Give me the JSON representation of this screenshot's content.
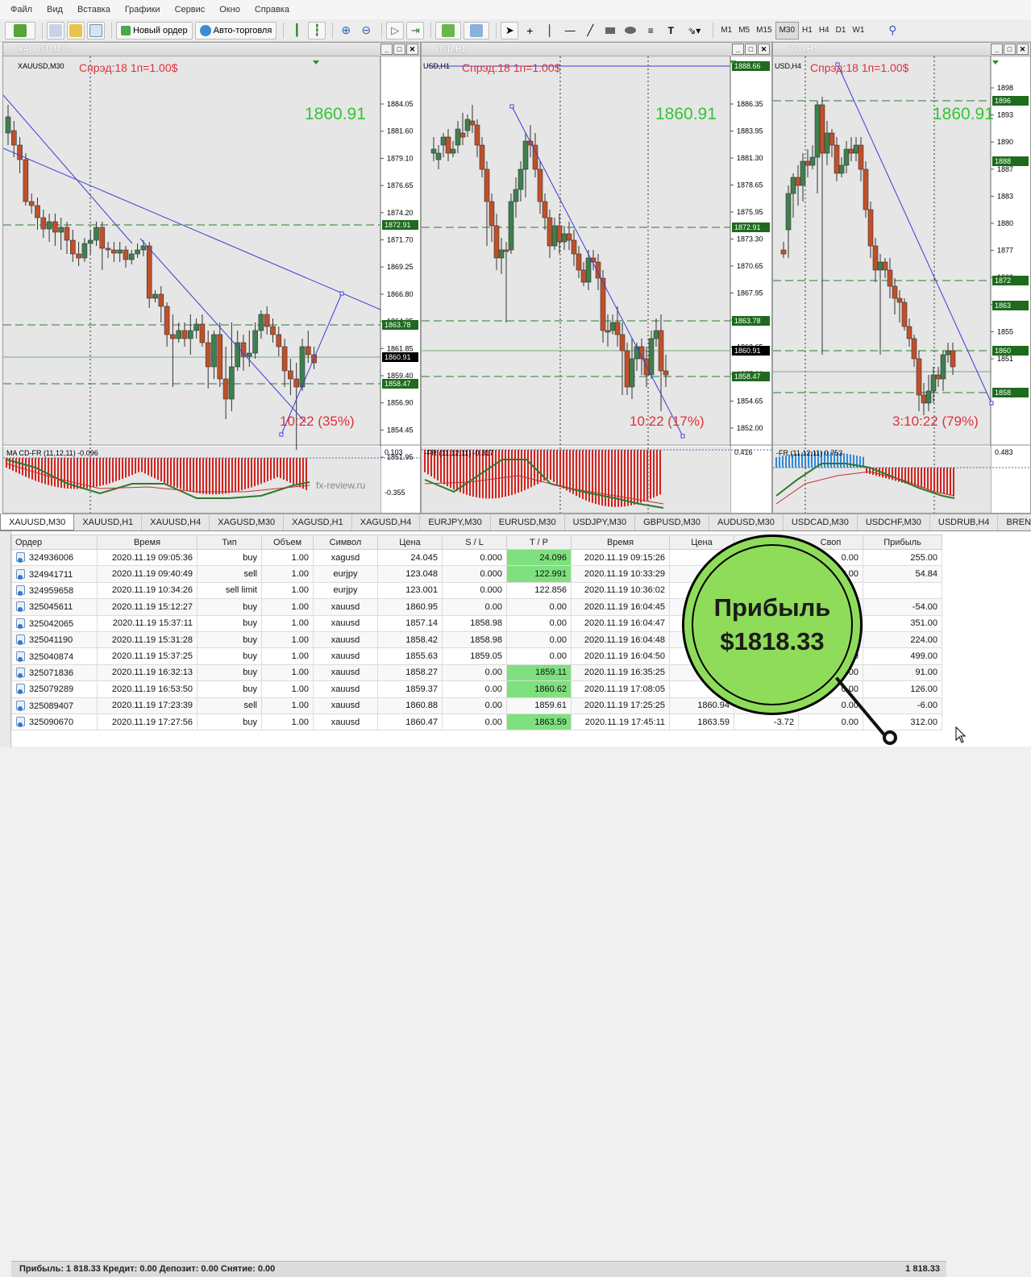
{
  "menu": [
    "Файл",
    "Вид",
    "Вставка",
    "Графики",
    "Сервис",
    "Окно",
    "Справка"
  ],
  "toolbar": {
    "new_order": "Новый ордер",
    "auto_trading": "Авто-торговля",
    "timeframes": [
      "M1",
      "M5",
      "M15",
      "M30",
      "H1",
      "H4",
      "D1",
      "W1"
    ],
    "active_timeframe": "M30"
  },
  "charts": [
    {
      "title": "XAUUSD,M30",
      "subtitle": "XAUUSD,M30",
      "spread": "Спрэд:18  1п=1.00$",
      "price": "1860.91",
      "countdown": "10:22 (35%)",
      "price_labels": [
        "1884.05",
        "1881.60",
        "1879.10",
        "1876.65",
        "1874.20",
        "1871.70",
        "1869.25",
        "1866.80",
        "1864.35",
        "1861.85",
        "1859.40",
        "1856.90",
        "1854.45",
        "1851.95"
      ],
      "markers": [
        "1872.91",
        "1863.78",
        "1860.91",
        "1858.47"
      ],
      "indicator": "MA CD-FR (11,12,11) -0.096",
      "ind_labels": [
        "0.103",
        "-0.355"
      ],
      "watermark": "fx-review.ru"
    },
    {
      "title": "USD,H1",
      "subtitle": "USD,H1",
      "spread": "Спрэд:18  1п=1.00$",
      "price": "1860.91",
      "countdown": "10:22 (17%)",
      "price_labels": [
        "1886.35",
        "1883.95",
        "1881.30",
        "1878.65",
        "1875.95",
        "1873.30",
        "1870.65",
        "1867.95",
        "1865.30",
        "1862.65",
        "1857.30",
        "1854.65",
        "1852.00"
      ],
      "markers": [
        "1888.66",
        "1872.91",
        "1863.78",
        "1860.91",
        "1858.47"
      ],
      "indicator": "-FR (11,12,11) -0.317",
      "ind_labels": [
        "0.416"
      ]
    },
    {
      "title": "USD,H4",
      "subtitle": "USD,H4",
      "spread": "Спрэд:18  1п=1.00$",
      "price": "1860.91",
      "countdown": "3:10:22 (79%)",
      "price_labels": [
        "1898",
        "1893",
        "1890",
        "1887",
        "1883",
        "1880",
        "1877",
        "1869",
        "1866",
        "1855",
        "1851"
      ],
      "markers": [
        "1896",
        "1888",
        "1872",
        "1863",
        "1860",
        "1858"
      ],
      "indicator": "-FR (11,12,11) 0.753",
      "ind_labels": [
        "0.483"
      ]
    }
  ],
  "tabs": [
    "XAUUSD,M30",
    "XAUUSD,H1",
    "XAUUSD,H4",
    "XAGUSD,M30",
    "XAGUSD,H1",
    "XAGUSD,H4",
    "EURJPY,M30",
    "EURUSD,M30",
    "USDJPY,M30",
    "GBPUSD,M30",
    "AUDUSD,M30",
    "USDCAD,M30",
    "USDCHF,M30",
    "USDRUB,H4",
    "BRENT,M"
  ],
  "active_tab": "XAUUSD,M30",
  "columns": [
    "Ордер",
    "Время",
    "Тип",
    "Объем",
    "Символ",
    "Цена",
    "S / L",
    "T / P",
    "Время",
    "Цена",
    "Комиссия",
    "Своп",
    "Прибыль"
  ],
  "orders": [
    {
      "id": "324936006",
      "time": "2020.11.19 09:05:36",
      "type": "buy",
      "vol": "1.00",
      "sym": "xagusd",
      "price": "24.045",
      "sl": "0.000",
      "tp": "24.096",
      "tp_hit": true,
      "ctime": "2020.11.19 09:15:26",
      "cprice": "",
      "comm": "",
      "swap": "0.00",
      "profit": "255.00"
    },
    {
      "id": "324941711",
      "time": "2020.11.19 09:40:49",
      "type": "sell",
      "vol": "1.00",
      "sym": "eurjpy",
      "price": "123.048",
      "sl": "0.000",
      "tp": "122.991",
      "tp_hit": true,
      "ctime": "2020.11.19 10:33:29",
      "cprice": "",
      "comm": "",
      "swap": "0.00",
      "profit": "54.84"
    },
    {
      "id": "324959658",
      "time": "2020.11.19 10:34:26",
      "type": "sell limit",
      "vol": "1.00",
      "sym": "eurjpy",
      "price": "123.001",
      "sl": "0.000",
      "tp": "122.856",
      "tp_hit": false,
      "ctime": "2020.11.19 10:36:02",
      "cprice": "",
      "comm": "",
      "swap": "",
      "profit": ""
    },
    {
      "id": "325045611",
      "time": "2020.11.19 15:12:27",
      "type": "buy",
      "vol": "1.00",
      "sym": "xauusd",
      "price": "1860.95",
      "sl": "0.00",
      "tp": "0.00",
      "tp_hit": false,
      "ctime": "2020.11.19 16:04:45",
      "cprice": "",
      "comm": "",
      "swap": "0.00",
      "profit": "-54.00"
    },
    {
      "id": "325042065",
      "time": "2020.11.19 15:37:11",
      "type": "buy",
      "vol": "1.00",
      "sym": "xauusd",
      "price": "1857.14",
      "sl": "1858.98",
      "tp": "0.00",
      "tp_hit": false,
      "ctime": "2020.11.19 16:04:47",
      "cprice": "",
      "comm": "",
      "swap": "0.00",
      "profit": "351.00"
    },
    {
      "id": "325041190",
      "time": "2020.11.19 15:31:28",
      "type": "buy",
      "vol": "1.00",
      "sym": "xauusd",
      "price": "1858.42",
      "sl": "1858.98",
      "tp": "0.00",
      "tp_hit": false,
      "ctime": "2020.11.19 16:04:48",
      "cprice": "",
      "comm": "",
      "swap": "0.00",
      "profit": "224.00"
    },
    {
      "id": "325040874",
      "time": "2020.11.19 15:37:25",
      "type": "buy",
      "vol": "1.00",
      "sym": "xauusd",
      "price": "1855.63",
      "sl": "1859.05",
      "tp": "0.00",
      "tp_hit": false,
      "ctime": "2020.11.19 16:04:50",
      "cprice": "",
      "comm": "",
      "swap": "0.00",
      "profit": "499.00"
    },
    {
      "id": "325071836",
      "time": "2020.11.19 16:32:13",
      "type": "buy",
      "vol": "1.00",
      "sym": "xauusd",
      "price": "1858.27",
      "sl": "0.00",
      "tp": "1859.11",
      "tp_hit": true,
      "ctime": "2020.11.19 16:35:25",
      "cprice": "",
      "comm": "",
      "swap": "0.00",
      "profit": "91.00"
    },
    {
      "id": "325079289",
      "time": "2020.11.19 16:53:50",
      "type": "buy",
      "vol": "1.00",
      "sym": "xauusd",
      "price": "1859.37",
      "sl": "0.00",
      "tp": "1860.62",
      "tp_hit": true,
      "ctime": "2020.11.19 17:08:05",
      "cprice": "18",
      "comm": "",
      "swap": "0.00",
      "profit": "126.00"
    },
    {
      "id": "325089407",
      "time": "2020.11.19 17:23:39",
      "type": "sell",
      "vol": "1.00",
      "sym": "xauusd",
      "price": "1860.88",
      "sl": "0.00",
      "tp": "1859.61",
      "tp_hit": false,
      "ctime": "2020.11.19 17:25:25",
      "cprice": "1860.94",
      "comm": "",
      "swap": "0.00",
      "profit": "-6.00"
    },
    {
      "id": "325090670",
      "time": "2020.11.19 17:27:56",
      "type": "buy",
      "vol": "1.00",
      "sym": "xauusd",
      "price": "1860.47",
      "sl": "0.00",
      "tp": "1863.59",
      "tp_hit": true,
      "ctime": "2020.11.19 17:45:11",
      "cprice": "1863.59",
      "comm": "-3.72",
      "swap": "0.00",
      "profit": "312.00"
    }
  ],
  "summary": "Прибыль: 1 818.33  Кредит: 0.00  Депозит: 0.00  Снятие: 0.00",
  "summary_total": "1 818.33",
  "badge": {
    "line1": "Прибыль",
    "line2": "$1818.33"
  },
  "colors": {
    "bull": "#3f7f4f",
    "bear": "#c0502a",
    "price_line": "#2e8b2e",
    "trend": "#3c3cd6",
    "hist": "#d4231e",
    "accent_green": "#7fe07f",
    "badge": "#8fdc5a"
  }
}
